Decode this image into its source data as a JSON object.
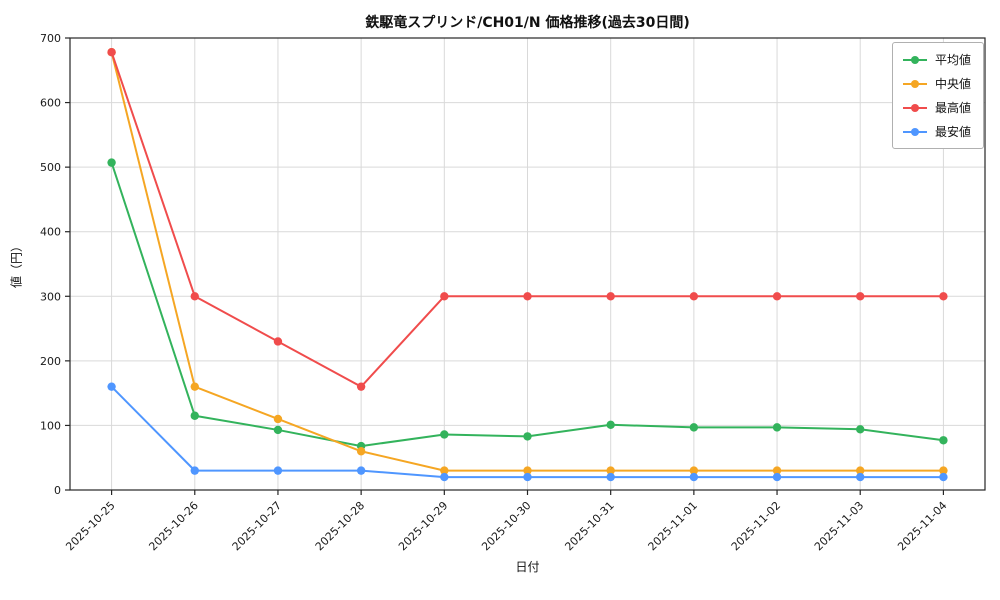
{
  "chart_data": {
    "type": "line",
    "title": "鉄駆竜スプリンド/CH01/N 価格推移(過去30日間)",
    "xlabel": "日付",
    "ylabel": "値（円）",
    "x": [
      "2025-10-25",
      "2025-10-26",
      "2025-10-27",
      "2025-10-28",
      "2025-10-29",
      "2025-10-30",
      "2025-10-31",
      "2025-11-01",
      "2025-11-02",
      "2025-11-03",
      "2025-11-04"
    ],
    "series": [
      {
        "name": "平均値",
        "color": "#33b35c",
        "values": [
          507,
          115,
          93,
          68,
          86,
          83,
          101,
          97,
          97,
          94,
          77
        ]
      },
      {
        "name": "中央値",
        "color": "#f5a623",
        "values": [
          678,
          160,
          110,
          60,
          30,
          30,
          30,
          30,
          30,
          30,
          30
        ]
      },
      {
        "name": "最高値",
        "color": "#f04c4c",
        "values": [
          678,
          300,
          230,
          160,
          300,
          300,
          300,
          300,
          300,
          300,
          300
        ]
      },
      {
        "name": "最安値",
        "color": "#4f96ff",
        "values": [
          160,
          30,
          30,
          30,
          20,
          20,
          20,
          20,
          20,
          20,
          20
        ]
      }
    ],
    "ylim": [
      0,
      700
    ],
    "ytick_step": 100,
    "grid": true,
    "legend_position": "top-right",
    "colors": {
      "grid": "#d9d9d9",
      "axis": "#262626",
      "background": "#ffffff"
    }
  }
}
